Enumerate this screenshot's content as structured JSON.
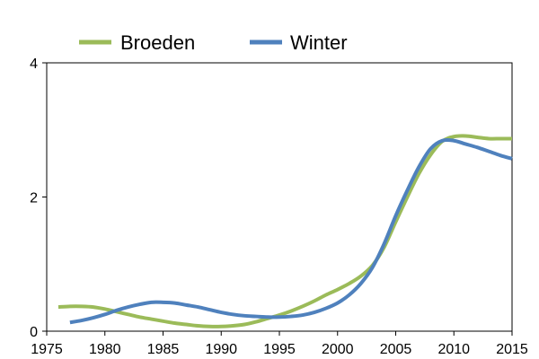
{
  "chart_data": {
    "type": "line",
    "title": "",
    "xlabel": "",
    "ylabel": "",
    "xlim": [
      1975,
      2015
    ],
    "ylim": [
      0,
      4
    ],
    "x_ticks": [
      "1975",
      "1980",
      "1985",
      "1990",
      "1995",
      "2000",
      "2005",
      "2010",
      "2015"
    ],
    "y_ticks": [
      "0",
      "2",
      "4"
    ],
    "grid": false,
    "legend_position": "top",
    "series": [
      {
        "name": "Broeden",
        "color": "#9BBB59",
        "x": [
          1976,
          1977,
          1978,
          1979,
          1980,
          1981,
          1982,
          1983,
          1984,
          1985,
          1986,
          1987,
          1988,
          1989,
          1990,
          1991,
          1992,
          1993,
          1994,
          1995,
          1996,
          1997,
          1998,
          1999,
          2000,
          2001,
          2002,
          2003,
          2004,
          2005,
          2006,
          2007,
          2008,
          2009,
          2010,
          2011,
          2012,
          2013,
          2014,
          2015
        ],
        "values": [
          0.36,
          0.37,
          0.37,
          0.36,
          0.33,
          0.29,
          0.25,
          0.21,
          0.18,
          0.15,
          0.12,
          0.1,
          0.08,
          0.07,
          0.07,
          0.08,
          0.1,
          0.14,
          0.19,
          0.24,
          0.3,
          0.37,
          0.45,
          0.54,
          0.62,
          0.71,
          0.82,
          0.98,
          1.25,
          1.63,
          2.0,
          2.35,
          2.63,
          2.83,
          2.9,
          2.91,
          2.89,
          2.87,
          2.87,
          2.87
        ]
      },
      {
        "name": "Winter",
        "color": "#4F81BD",
        "x": [
          1977,
          1978,
          1979,
          1980,
          1981,
          1982,
          1983,
          1984,
          1985,
          1986,
          1987,
          1988,
          1989,
          1990,
          1991,
          1992,
          1993,
          1994,
          1995,
          1996,
          1997,
          1998,
          1999,
          2000,
          2001,
          2002,
          2003,
          2004,
          2005,
          2006,
          2007,
          2008,
          2009,
          2010,
          2011,
          2012,
          2013,
          2014,
          2015
        ],
        "values": [
          0.13,
          0.16,
          0.2,
          0.25,
          0.31,
          0.36,
          0.4,
          0.43,
          0.43,
          0.42,
          0.39,
          0.36,
          0.32,
          0.28,
          0.25,
          0.23,
          0.22,
          0.21,
          0.21,
          0.22,
          0.24,
          0.28,
          0.34,
          0.42,
          0.54,
          0.71,
          0.95,
          1.3,
          1.72,
          2.1,
          2.45,
          2.72,
          2.84,
          2.84,
          2.79,
          2.74,
          2.68,
          2.62,
          2.57
        ]
      }
    ]
  }
}
